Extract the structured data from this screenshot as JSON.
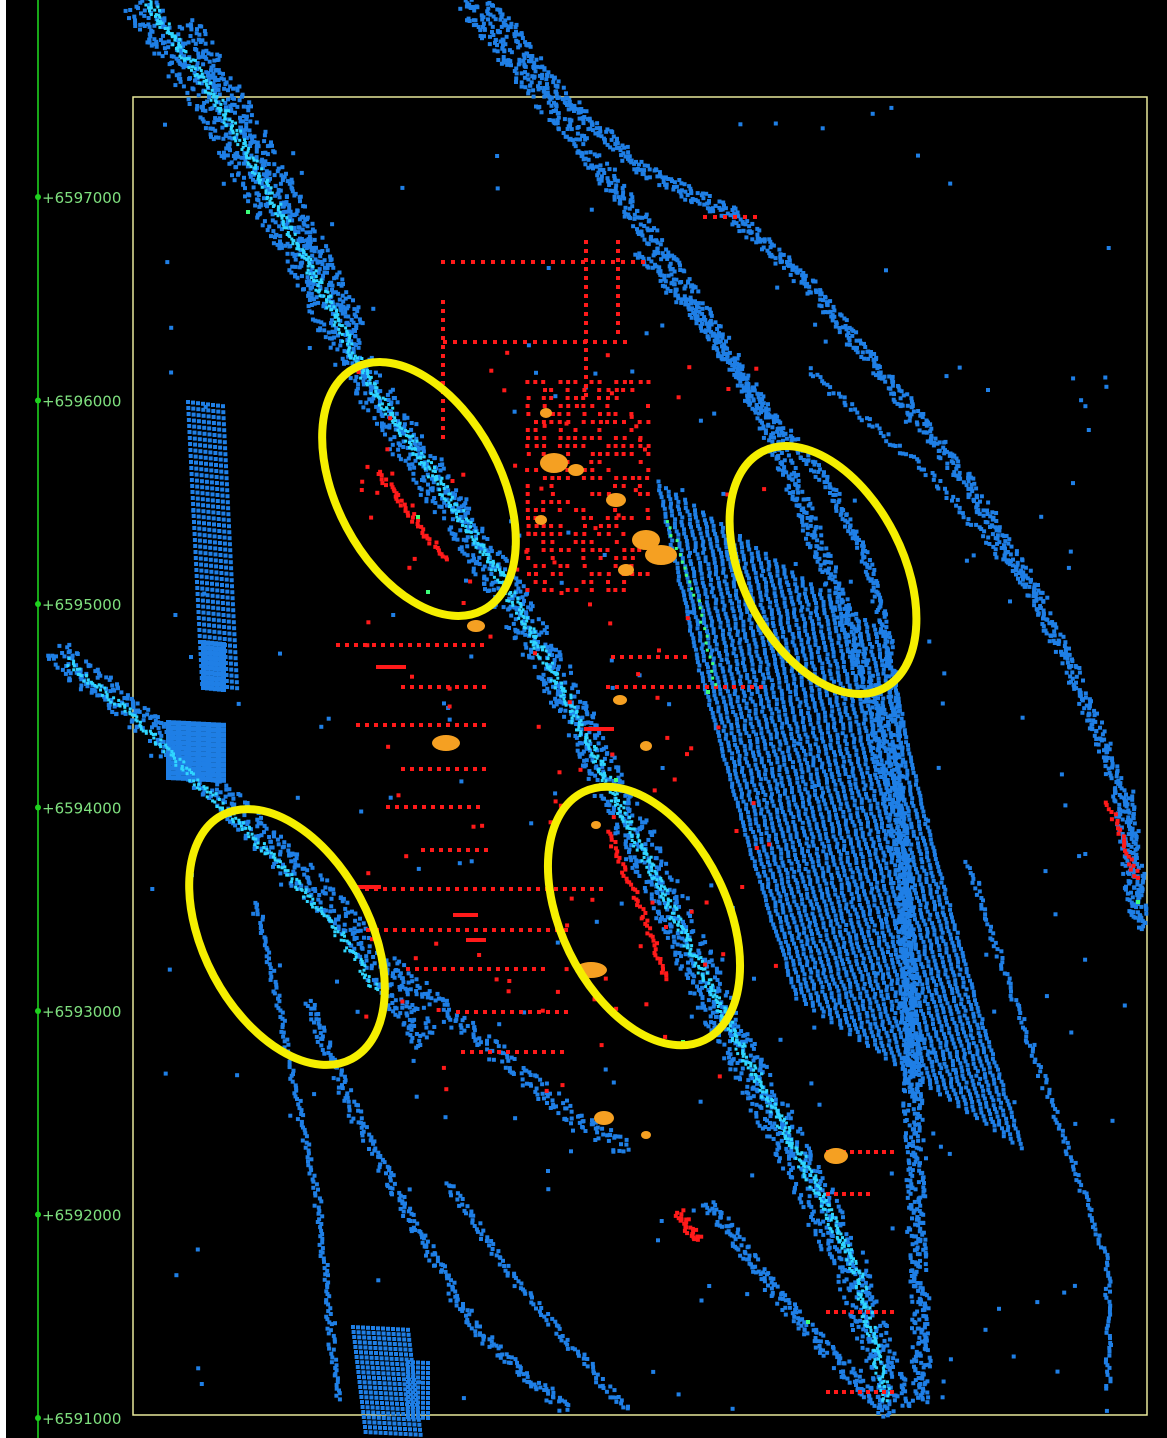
{
  "axis": {
    "name": "northing-axis",
    "color": "#1fd11f",
    "label_color": "#7fe07f",
    "ticks": [
      {
        "label": "+6597000",
        "value": 6597000
      },
      {
        "label": "+6596000",
        "value": 6596000
      },
      {
        "label": "+6595000",
        "value": 6595000
      },
      {
        "label": "+6594000",
        "value": 6594000
      },
      {
        "label": "+6593000",
        "value": 6593000
      },
      {
        "label": "+6592000",
        "value": 6592000
      },
      {
        "label": "+6591000",
        "value": 6591000
      }
    ]
  },
  "colors": {
    "background": "#000000",
    "bounding_box": "#e8e89a",
    "point_blue": "#1f7fe6",
    "point_cyan": "#2fd6ff",
    "point_green": "#3dff7a",
    "point_red": "#ff1a1a",
    "blob_orange": "#f5a020",
    "highlight_ellipse": "#f5ef00"
  },
  "legend": [],
  "highlight_regions": 4
}
